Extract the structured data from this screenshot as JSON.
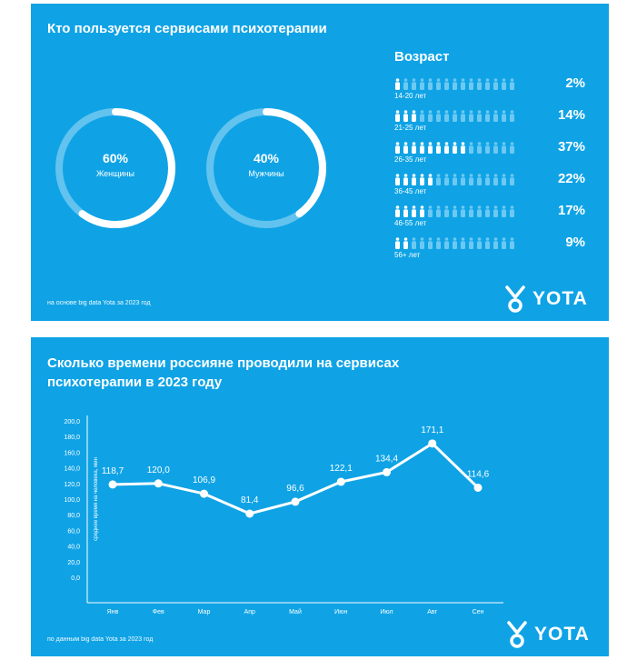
{
  "colors": {
    "panel": "#0fa3e6",
    "foreground": "#ffffff",
    "person_inactive": "#6ec9f2"
  },
  "panel1": {
    "title": "Кто пользуется сервисами психотерапии",
    "gender": [
      {
        "pct": "60%",
        "label": "Женщины",
        "value": 60
      },
      {
        "pct": "40%",
        "label": "Мужчины",
        "value": 40
      }
    ],
    "age": {
      "title": "Возраст",
      "rows": [
        {
          "range": "14-20 лет",
          "pct": "2%",
          "filled": 1
        },
        {
          "range": "21-25 лет",
          "pct": "14%",
          "filled": 3
        },
        {
          "range": "26-35 лет",
          "pct": "37%",
          "filled": 9
        },
        {
          "range": "36-45 лет",
          "pct": "22%",
          "filled": 5
        },
        {
          "range": "46-55 лет",
          "pct": "17%",
          "filled": 4
        },
        {
          "range": "56+ лет",
          "pct": "9%",
          "filled": 2
        }
      ],
      "total_icons": 15
    },
    "footnote": "на основе big data Yota за 2023 год",
    "logo": "YOTA"
  },
  "panel2": {
    "title_line1": "Сколько времени россияне проводили на сервисах",
    "title_line2": "психотерапии в 2023 году",
    "footnote": "по данным big data Yota за 2023 год",
    "logo": "YOTA"
  },
  "chart_data": {
    "type": "line",
    "title": "Сколько времени россияне проводили на сервисах психотерапии в 2023 году",
    "xlabel": "",
    "ylabel": "среднее время на человека, мин",
    "ylim": [
      0,
      200
    ],
    "yticks": [
      "200,0",
      "180,0",
      "160,0",
      "140,0",
      "120,0",
      "100,0",
      "80,0",
      "60,0",
      "40,0",
      "20,0",
      "0,0"
    ],
    "categories": [
      "Янв",
      "Фев",
      "Мар",
      "Апр",
      "Май",
      "Июн",
      "Июл",
      "Авг",
      "Сен"
    ],
    "values": [
      118.7,
      120.0,
      106.9,
      81.4,
      96.6,
      122.1,
      134.4,
      171.1,
      114.6
    ],
    "labels": [
      "118,7",
      "120,0",
      "106,9",
      "81,4",
      "96,6",
      "122,1",
      "134,4",
      "171,1",
      "114,6"
    ],
    "grid": false
  }
}
